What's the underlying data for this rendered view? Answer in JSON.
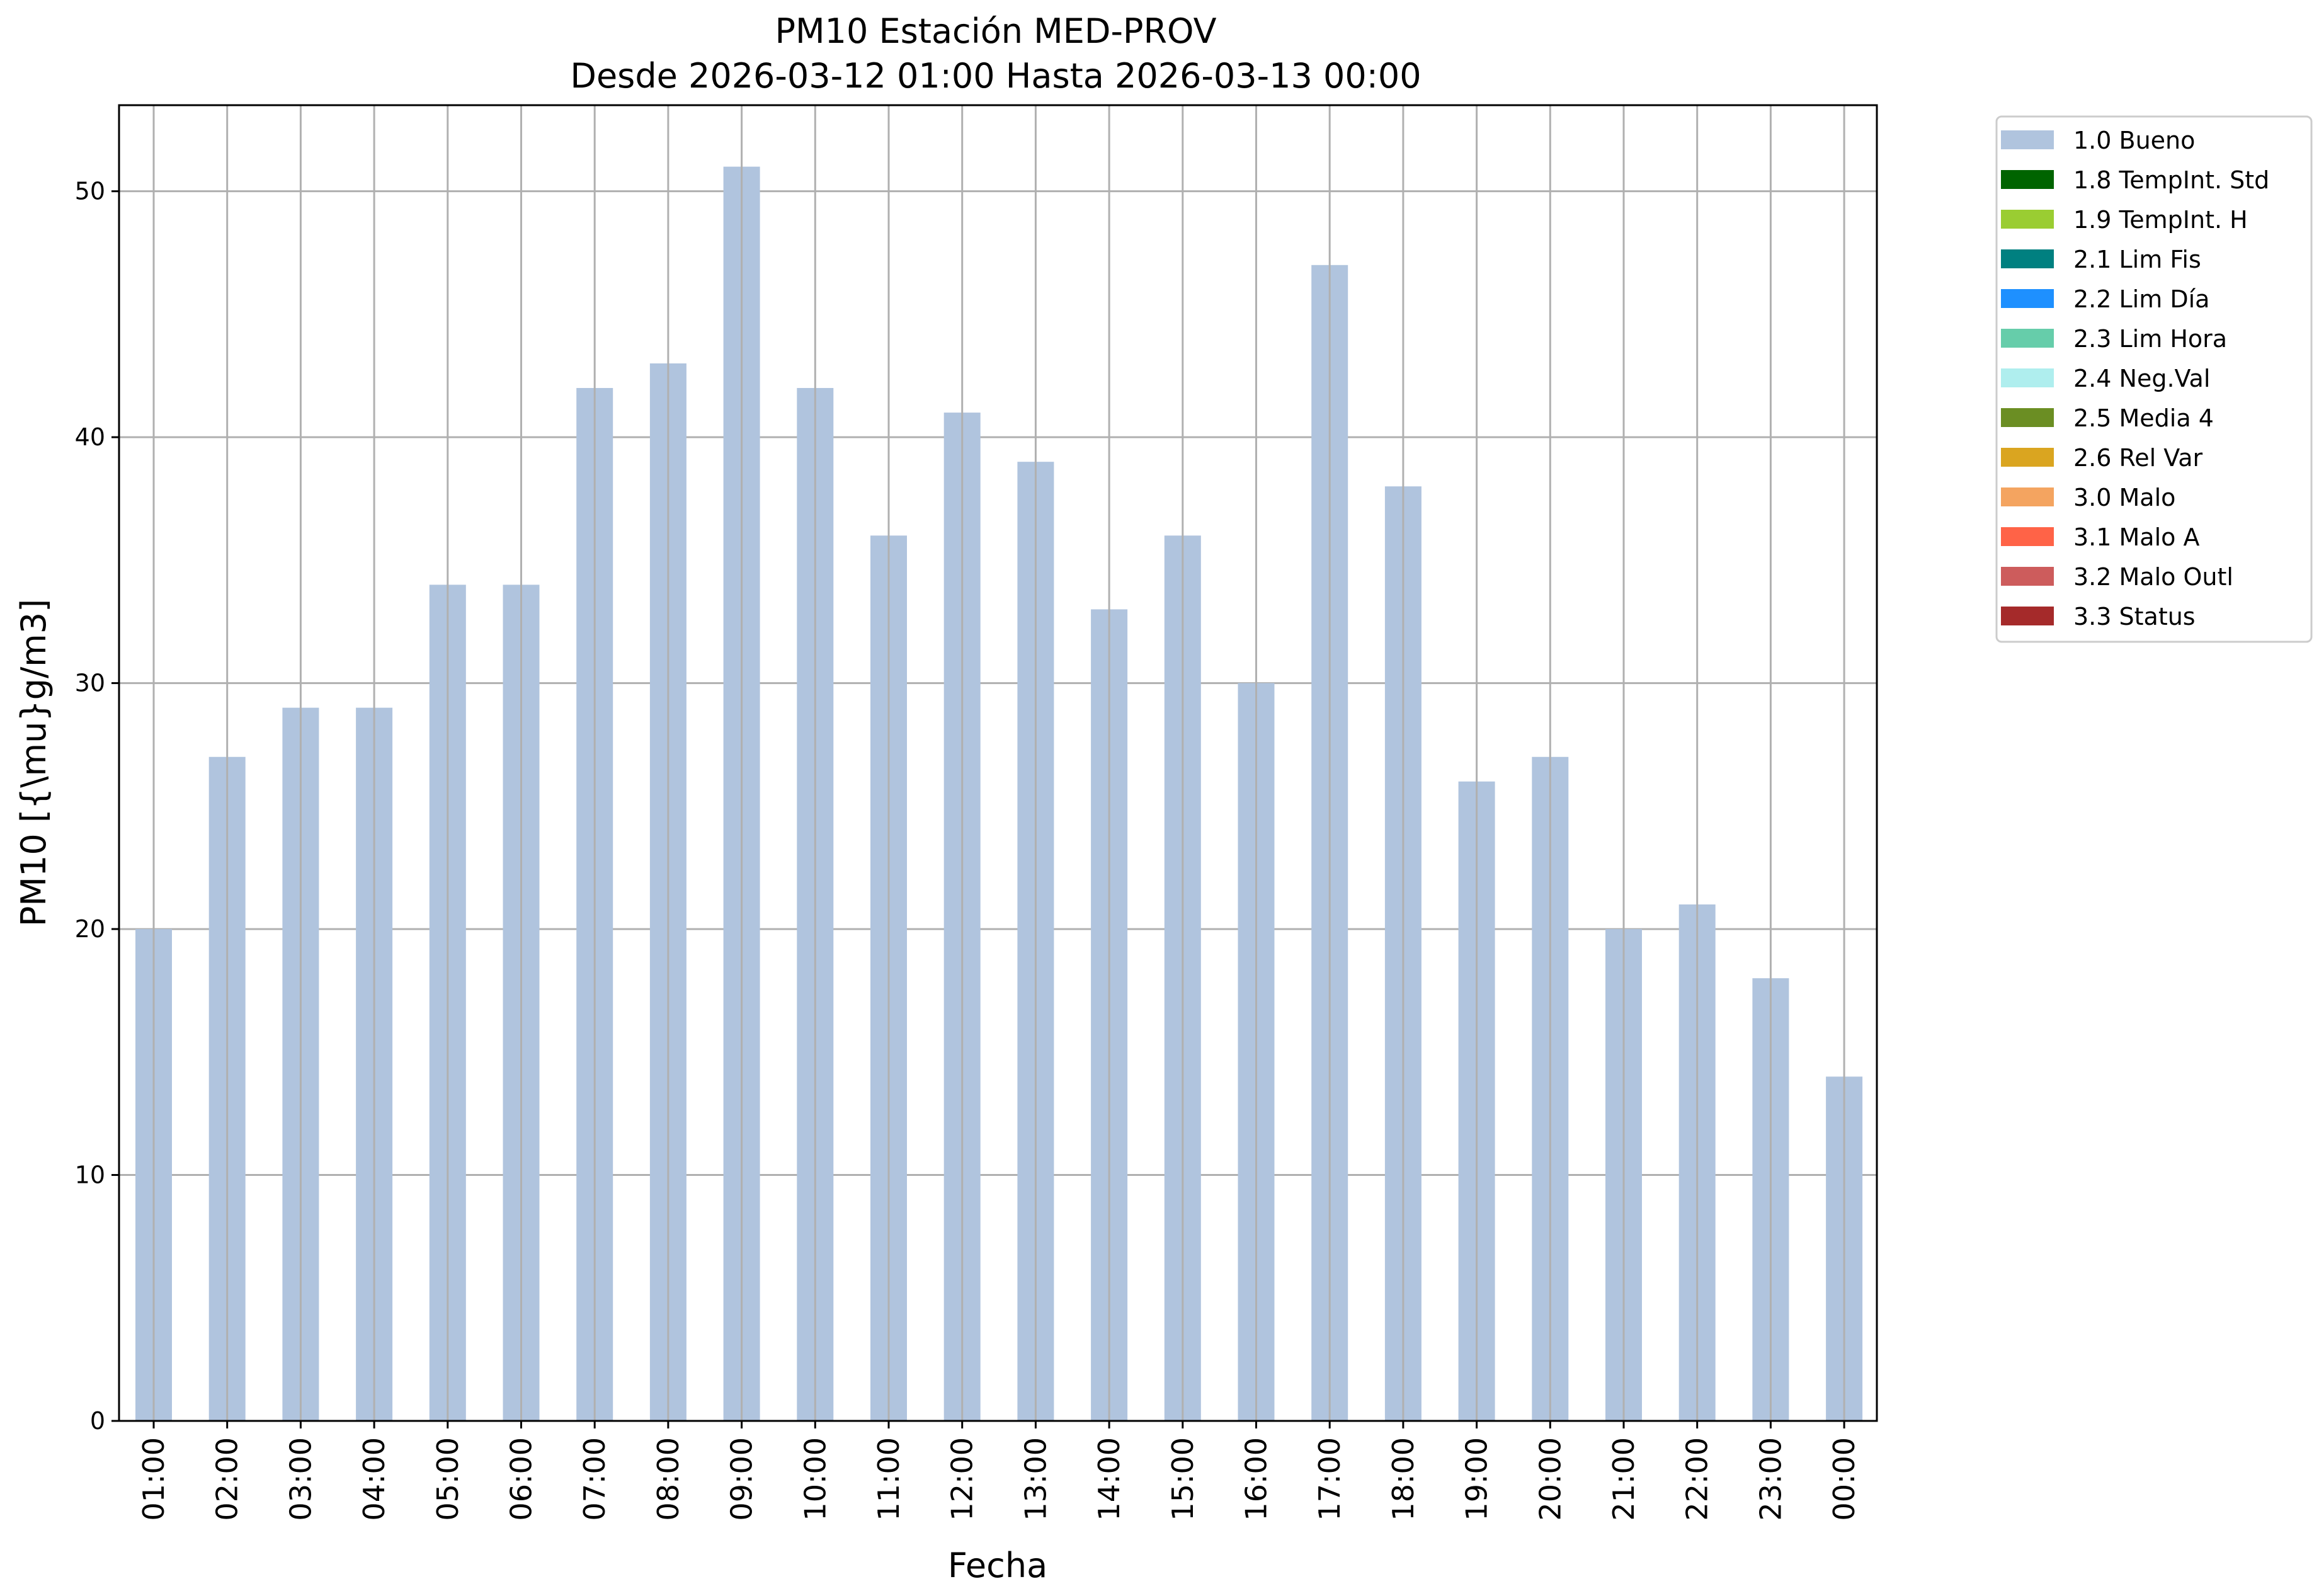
{
  "chart_data": {
    "type": "bar",
    "title": "PM10 Estación MED-PROV",
    "subtitle": "Desde 2026-03-12 01:00 Hasta 2026-03-13 00:00",
    "xlabel": "Fecha",
    "ylabel": "PM10 [{\\mu}g/m3]",
    "ylim": [
      0,
      53.5
    ],
    "yticks": [
      0,
      10,
      20,
      30,
      40,
      50
    ],
    "grid": true,
    "legend_position": "outside-upper-right",
    "categories": [
      "01:00",
      "02:00",
      "03:00",
      "04:00",
      "05:00",
      "06:00",
      "07:00",
      "08:00",
      "09:00",
      "10:00",
      "11:00",
      "12:00",
      "13:00",
      "14:00",
      "15:00",
      "16:00",
      "17:00",
      "18:00",
      "19:00",
      "20:00",
      "21:00",
      "22:00",
      "23:00",
      "00:00"
    ],
    "series": [
      {
        "name": "1.0 Bueno",
        "color": "#b0c4de",
        "values": [
          20,
          27,
          29,
          29,
          34,
          34,
          42,
          43,
          51,
          42,
          36,
          41,
          39,
          33,
          36,
          30,
          47,
          38,
          26,
          27,
          20,
          21,
          18,
          14
        ]
      }
    ],
    "legend": [
      {
        "label": "1.0 Bueno",
        "color": "#b0c4de"
      },
      {
        "label": "1.8 TempInt. Std",
        "color": "#006400"
      },
      {
        "label": "1.9 TempInt. H",
        "color": "#9acd32"
      },
      {
        "label": "2.1 Lim Fis",
        "color": "#008080"
      },
      {
        "label": "2.2 Lim Día",
        "color": "#1e90ff"
      },
      {
        "label": "2.3 Lim Hora",
        "color": "#66cdaa"
      },
      {
        "label": "2.4 Neg.Val",
        "color": "#afeeee"
      },
      {
        "label": "2.5 Media 4",
        "color": "#6b8e23"
      },
      {
        "label": "2.6 Rel Var",
        "color": "#daa520"
      },
      {
        "label": "3.0 Malo",
        "color": "#f4a460"
      },
      {
        "label": "3.1 Malo A",
        "color": "#ff6347"
      },
      {
        "label": "3.2 Malo Outl",
        "color": "#cd5c5c"
      },
      {
        "label": "3.3 Status",
        "color": "#a52a2a"
      }
    ]
  }
}
